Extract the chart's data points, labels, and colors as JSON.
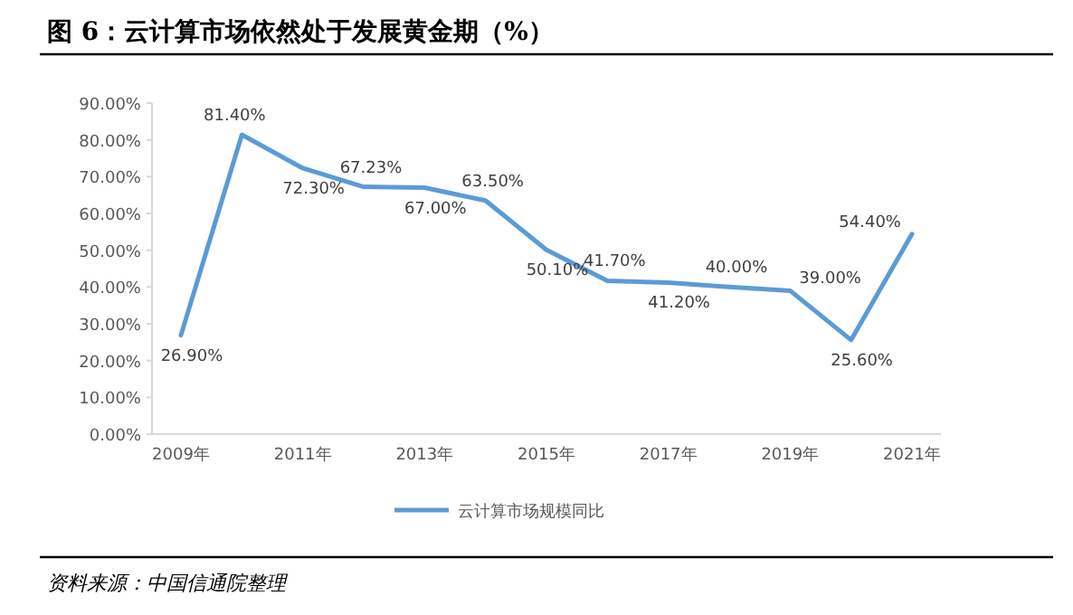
{
  "chart_data": {
    "type": "line",
    "title": "图 6：云计算市场依然处于发展黄金期（%）",
    "categories": [
      "2009年",
      null,
      "2011年",
      null,
      "2013年",
      null,
      "2015年",
      null,
      "2017年",
      null,
      "2019年",
      null,
      "2021年"
    ],
    "series": [
      {
        "name": "云计算市场规模同比",
        "color": "#5b9bd5",
        "values": [
          26.9,
          81.4,
          72.3,
          67.23,
          67.0,
          63.5,
          50.1,
          41.7,
          41.2,
          40.0,
          39.0,
          25.6,
          54.4
        ],
        "value_labels": [
          "26.90%",
          "81.40%",
          "72.30%",
          "67.23%",
          "67.00%",
          "63.50%",
          "50.10%",
          "41.70%",
          "41.20%",
          "40.00%",
          "39.00%",
          "25.60%",
          "54.40%"
        ]
      }
    ],
    "ylim": [
      0,
      90
    ],
    "yticks": [
      {
        "value": 0,
        "label": "0.00%"
      },
      {
        "value": 10,
        "label": "10.00%"
      },
      {
        "value": 20,
        "label": "20.00%"
      },
      {
        "value": 30,
        "label": "30.00%"
      },
      {
        "value": 40,
        "label": "40.00%"
      },
      {
        "value": 50,
        "label": "50.00%"
      },
      {
        "value": 60,
        "label": "60.00%"
      },
      {
        "value": 70,
        "label": "70.00%"
      },
      {
        "value": 80,
        "label": "80.00%"
      },
      {
        "value": 90,
        "label": "90.00%"
      }
    ],
    "legend": "bottom",
    "marker": "none",
    "line_style": "solid",
    "grid": false,
    "annotations": [
      "资料来源：中国信通院整理"
    ]
  }
}
